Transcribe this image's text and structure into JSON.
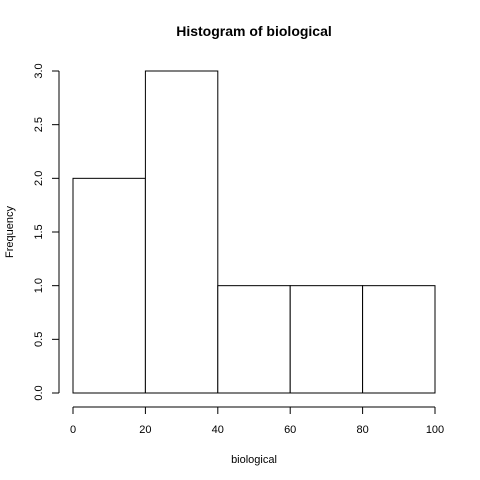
{
  "chart_data": {
    "type": "bar",
    "title": "Histogram of biological",
    "xlabel": "biological",
    "ylabel": "Frequency",
    "bins": [
      {
        "from": 0,
        "to": 20,
        "count": 2
      },
      {
        "from": 20,
        "to": 40,
        "count": 3
      },
      {
        "from": 40,
        "to": 60,
        "count": 1
      },
      {
        "from": 60,
        "to": 80,
        "count": 1
      },
      {
        "from": 80,
        "to": 100,
        "count": 1
      }
    ],
    "xlim": [
      0,
      100
    ],
    "ylim": [
      0,
      3
    ],
    "x_ticks": [
      0,
      20,
      40,
      60,
      80,
      100
    ],
    "y_ticks": [
      "0.0",
      "0.5",
      "1.0",
      "1.5",
      "2.0",
      "2.5",
      "3.0"
    ],
    "grid": false,
    "bar_fill": "#ffffff",
    "bar_stroke": "#000000"
  }
}
